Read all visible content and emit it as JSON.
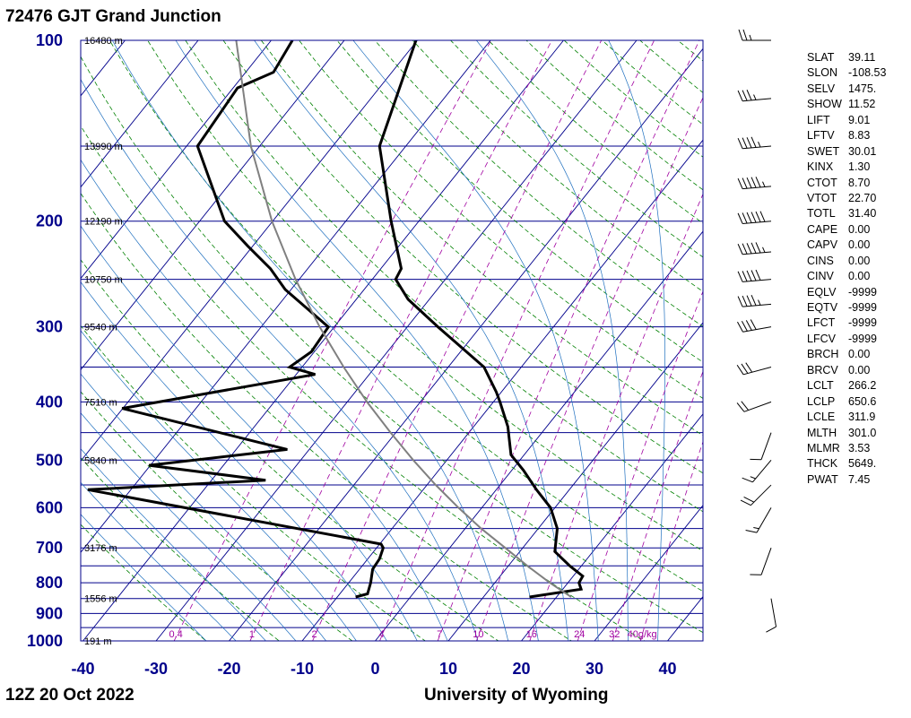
{
  "title": "72476 GJT Grand Junction",
  "footer_left": "12Z 20 Oct 2022",
  "footer_right": "University of Wyoming",
  "colors": {
    "isobar": "#00008b",
    "isotherm": "#00008b",
    "dry_adiabat": "#008000",
    "moist_adiabat": "#1e6fbf",
    "mixing_ratio": "#a000a0",
    "sounding": "#000000",
    "parcel": "#808080",
    "axis_labels": "#00008b"
  },
  "stats": [
    {
      "key": "SLAT",
      "value": "39.11"
    },
    {
      "key": "SLON",
      "value": "-108.53"
    },
    {
      "key": "SELV",
      "value": "1475."
    },
    {
      "key": "SHOW",
      "value": "11.52"
    },
    {
      "key": "LIFT",
      "value": "9.01"
    },
    {
      "key": "LFTV",
      "value": "8.83"
    },
    {
      "key": "SWET",
      "value": "30.01"
    },
    {
      "key": "KINX",
      "value": "1.30"
    },
    {
      "key": "CTOT",
      "value": "8.70"
    },
    {
      "key": "VTOT",
      "value": "22.70"
    },
    {
      "key": "TOTL",
      "value": "31.40"
    },
    {
      "key": "CAPE",
      "value": "0.00"
    },
    {
      "key": "CAPV",
      "value": "0.00"
    },
    {
      "key": "CINS",
      "value": "0.00"
    },
    {
      "key": "CINV",
      "value": "0.00"
    },
    {
      "key": "EQLV",
      "value": "-9999"
    },
    {
      "key": "EQTV",
      "value": "-9999"
    },
    {
      "key": "LFCT",
      "value": "-9999"
    },
    {
      "key": "LFCV",
      "value": "-9999"
    },
    {
      "key": "BRCH",
      "value": "0.00"
    },
    {
      "key": "BRCV",
      "value": "0.00"
    },
    {
      "key": "LCLT",
      "value": "266.2"
    },
    {
      "key": "LCLP",
      "value": "650.6"
    },
    {
      "key": "LCLE",
      "value": "311.9"
    },
    {
      "key": "MLTH",
      "value": "301.0"
    },
    {
      "key": "MLMR",
      "value": "3.53"
    },
    {
      "key": "THCK",
      "value": "5649."
    },
    {
      "key": "PWAT",
      "value": "7.45"
    }
  ],
  "chart_data": {
    "type": "line",
    "subtype": "skew-t log-p diagram",
    "x_axis": {
      "quantity": "temperature (°C)",
      "ticks": [
        -40,
        -30,
        -20,
        -10,
        0,
        10,
        20,
        30,
        40
      ]
    },
    "y_axis": {
      "quantity": "pressure (hPa)",
      "scale": "log",
      "ticks": [
        100,
        200,
        300,
        400,
        500,
        600,
        700,
        800,
        900,
        1000
      ]
    },
    "height_labels": [
      {
        "p": 100,
        "label": "16480 m"
      },
      {
        "p": 150,
        "label": "13990 m"
      },
      {
        "p": 200,
        "label": "12190 m"
      },
      {
        "p": 250,
        "label": "10750 m"
      },
      {
        "p": 300,
        "label": "9540 m"
      },
      {
        "p": 400,
        "label": "7510 m"
      },
      {
        "p": 500,
        "label": "5840 m"
      },
      {
        "p": 700,
        "label": "3176 m"
      },
      {
        "p": 850,
        "label": "1556 m"
      },
      {
        "p": 1000,
        "label": "191 m"
      }
    ],
    "mixing_ratio_labels": [
      "0.4",
      "1",
      "2",
      "4",
      "7",
      "10",
      "16",
      "24",
      "32",
      "40g/kg"
    ],
    "mixing_ratio_values": [
      0.4,
      1,
      2,
      4,
      7,
      10,
      16,
      24,
      32,
      40
    ],
    "series": [
      {
        "name": "TEMP",
        "points": [
          [
            845,
            16.3
          ],
          [
            820,
            22.5
          ],
          [
            800,
            21.5
          ],
          [
            780,
            21.3
          ],
          [
            750,
            18.4
          ],
          [
            710,
            14.8
          ],
          [
            650,
            12.6
          ],
          [
            600,
            9.4
          ],
          [
            560,
            5.5
          ],
          [
            520,
            1.6
          ],
          [
            490,
            -1.8
          ],
          [
            440,
            -5.3
          ],
          [
            400,
            -9.1
          ],
          [
            385,
            -10.7
          ],
          [
            350,
            -15.1
          ],
          [
            300,
            -25.8
          ],
          [
            270,
            -32.9
          ],
          [
            250,
            -36.8
          ],
          [
            240,
            -37.2
          ],
          [
            200,
            -43.8
          ],
          [
            150,
            -53.6
          ],
          [
            100,
            -60.2
          ]
        ]
      },
      {
        "name": "DWPT",
        "points": [
          [
            845,
            -7.5
          ],
          [
            835,
            -6.2
          ],
          [
            800,
            -7.0
          ],
          [
            760,
            -8.2
          ],
          [
            730,
            -8.4
          ],
          [
            700,
            -9.1
          ],
          [
            690,
            -9.8
          ],
          [
            560,
            -55.9
          ],
          [
            540,
            -32.6
          ],
          [
            510,
            -50.2
          ],
          [
            480,
            -33.0
          ],
          [
            410,
            -60.1
          ],
          [
            360,
            -37.4
          ],
          [
            350,
            -41.7
          ],
          [
            330,
            -40.4
          ],
          [
            300,
            -40.8
          ],
          [
            260,
            -50.8
          ],
          [
            240,
            -55.1
          ],
          [
            220,
            -60.7
          ],
          [
            200,
            -66.6
          ],
          [
            150,
            -78.5
          ],
          [
            120,
            -79.4
          ],
          [
            113,
            -76.2
          ],
          [
            100,
            -77.1
          ]
        ]
      },
      {
        "name": "PARCEL",
        "points": [
          [
            845,
            22.0
          ],
          [
            800,
            17.5
          ],
          [
            750,
            12.6
          ],
          [
            700,
            7.6
          ],
          [
            650,
            2.2
          ],
          [
            600,
            -3.2
          ],
          [
            550,
            -8.8
          ],
          [
            500,
            -14.6
          ],
          [
            450,
            -20.7
          ],
          [
            400,
            -27.3
          ],
          [
            350,
            -34.3
          ],
          [
            300,
            -42.0
          ],
          [
            250,
            -50.5
          ],
          [
            200,
            -60.1
          ],
          [
            150,
            -71.2
          ],
          [
            100,
            -84.8
          ]
        ]
      }
    ],
    "wind_barbs": [
      {
        "p": 100,
        "spd": 25,
        "dir": 270
      },
      {
        "p": 125,
        "spd": 35,
        "dir": 265
      },
      {
        "p": 150,
        "spd": 45,
        "dir": 265
      },
      {
        "p": 175,
        "spd": 55,
        "dir": 265
      },
      {
        "p": 200,
        "spd": 60,
        "dir": 265
      },
      {
        "p": 225,
        "spd": 55,
        "dir": 265
      },
      {
        "p": 250,
        "spd": 50,
        "dir": 265
      },
      {
        "p": 275,
        "spd": 45,
        "dir": 265
      },
      {
        "p": 300,
        "spd": 40,
        "dir": 260
      },
      {
        "p": 350,
        "spd": 30,
        "dir": 255
      },
      {
        "p": 400,
        "spd": 20,
        "dir": 250
      },
      {
        "p": 450,
        "spd": 10,
        "dir": 200
      },
      {
        "p": 500,
        "spd": 15,
        "dir": 220
      },
      {
        "p": 550,
        "spd": 20,
        "dir": 225
      },
      {
        "p": 600,
        "spd": 15,
        "dir": 210
      },
      {
        "p": 700,
        "spd": 10,
        "dir": 200
      },
      {
        "p": 850,
        "spd": 10,
        "dir": 170
      }
    ]
  }
}
